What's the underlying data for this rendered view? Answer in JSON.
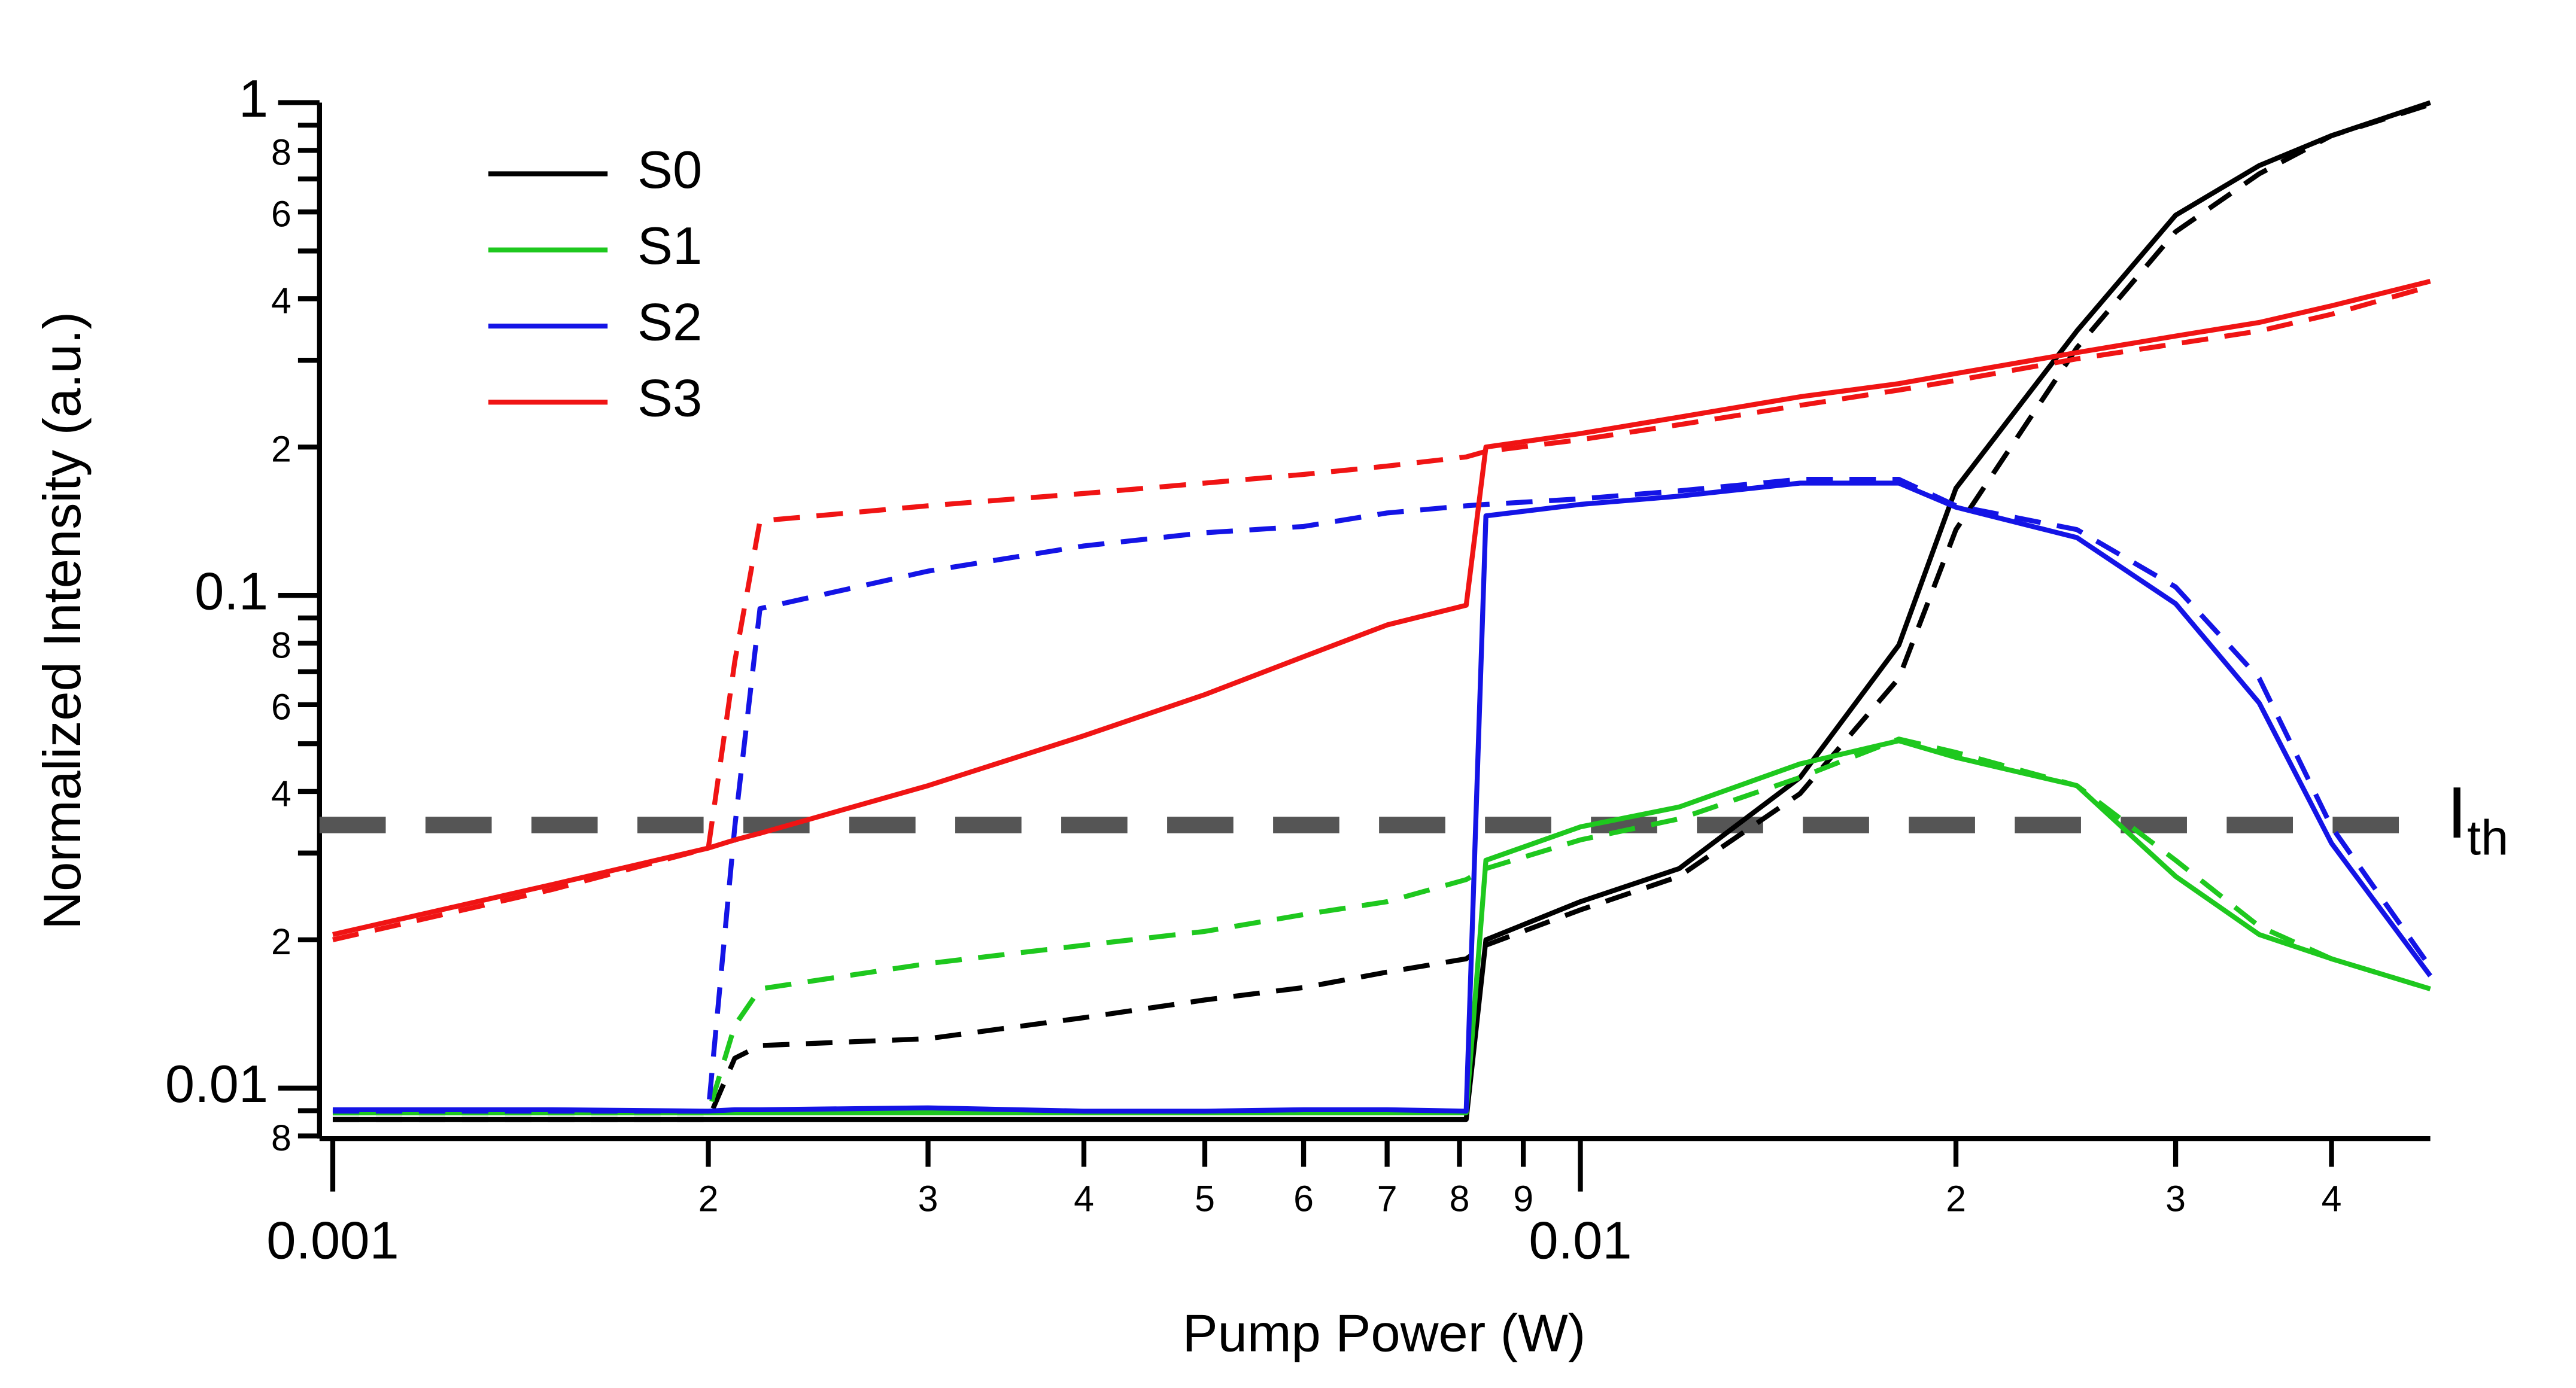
{
  "chart_data": {
    "type": "line",
    "xlabel": "Pump Power (W)",
    "ylabel": "Normalized Intensity (a.u.)",
    "xscale": "log",
    "yscale": "log",
    "xlim": [
      0.001,
      0.048
    ],
    "ylim": [
      0.0079,
      1
    ],
    "xticks": [
      0.001,
      {
        "value": 0.002,
        "label": "2"
      },
      {
        "value": 0.003,
        "label": "3"
      },
      {
        "value": 0.004,
        "label": "4"
      },
      {
        "value": 0.005,
        "label": "5"
      },
      {
        "value": 0.006,
        "label": "6"
      },
      {
        "value": 0.007,
        "label": "7"
      },
      {
        "value": 0.008,
        "label": "8"
      },
      {
        "value": 0.009,
        "label": "9"
      },
      0.01,
      {
        "value": 0.02,
        "label": "2"
      },
      {
        "value": 0.03,
        "label": "3"
      },
      {
        "value": 0.04,
        "label": "4"
      }
    ],
    "yticks": [
      1,
      {
        "value": 0.8,
        "label": "8"
      },
      {
        "value": 0.6,
        "label": "6"
      },
      {
        "value": 0.4,
        "label": "4"
      },
      {
        "value": 0.2,
        "label": "2"
      },
      0.1,
      {
        "value": 0.08,
        "label": "8"
      },
      {
        "value": 0.06,
        "label": "6"
      },
      {
        "value": 0.04,
        "label": "4"
      },
      {
        "value": 0.02,
        "label": "2"
      },
      0.01,
      {
        "value": 0.008,
        "label": "8"
      }
    ],
    "legend": "upper left",
    "threshold": {
      "label": "I",
      "subscript": "th",
      "value": 0.0342,
      "color": "#555555"
    },
    "x": [
      0.001,
      0.0015,
      0.002,
      0.0021,
      0.0022,
      0.003,
      0.004,
      0.005,
      0.006,
      0.007,
      0.0081,
      0.0084,
      0.01,
      0.012,
      0.015,
      0.018,
      0.02,
      0.025,
      0.03,
      0.035,
      0.04,
      0.048
    ],
    "series": [
      {
        "name": "S0",
        "color": "#000000",
        "values": [
          0.00864,
          0.00864,
          0.00864,
          0.00864,
          0.00864,
          0.00864,
          0.00864,
          0.00864,
          0.00864,
          0.00864,
          0.00864,
          0.02,
          0.0239,
          0.0279,
          0.0427,
          0.0793,
          0.165,
          0.344,
          0.591,
          0.745,
          0.857,
          1.0
        ],
        "values_dashed": [
          0.00864,
          0.00864,
          0.00864,
          0.0115,
          0.0122,
          0.0126,
          0.0139,
          0.0151,
          0.016,
          0.0172,
          0.0183,
          0.0195,
          0.023,
          0.0269,
          0.0396,
          0.0679,
          0.136,
          0.318,
          0.547,
          0.717,
          0.857,
          0.992
        ]
      },
      {
        "name": "S1",
        "color": "#1ec81e",
        "values": [
          0.00891,
          0.00891,
          0.00891,
          0.00891,
          0.00891,
          0.00891,
          0.00891,
          0.00891,
          0.00891,
          0.00891,
          0.00891,
          0.029,
          0.0339,
          0.0372,
          0.0455,
          0.0507,
          0.0469,
          0.0411,
          0.0269,
          0.0205,
          0.0183,
          0.0159
        ],
        "values_dashed": [
          0.00891,
          0.00891,
          0.00891,
          0.0134,
          0.0159,
          0.0179,
          0.0195,
          0.0208,
          0.0225,
          0.0239,
          0.0265,
          0.0279,
          0.0319,
          0.0352,
          0.0427,
          0.0511,
          0.048,
          0.0411,
          0.029,
          0.0213,
          0.0183,
          0.0159
        ]
      },
      {
        "name": "S2",
        "color": "#1414e6",
        "values": [
          0.00904,
          0.00904,
          0.00898,
          0.00904,
          0.00904,
          0.00912,
          0.00898,
          0.00898,
          0.00904,
          0.00904,
          0.00898,
          0.145,
          0.153,
          0.159,
          0.169,
          0.169,
          0.151,
          0.131,
          0.0962,
          0.0605,
          0.0314,
          0.0169
        ],
        "values_dashed": [
          0.00898,
          0.00898,
          0.00898,
          0.0339,
          0.094,
          0.112,
          0.126,
          0.134,
          0.138,
          0.147,
          0.152,
          0.153,
          0.157,
          0.163,
          0.172,
          0.172,
          0.152,
          0.136,
          0.104,
          0.0679,
          0.0339,
          0.0176
        ]
      },
      {
        "name": "S3",
        "color": "#f01414",
        "values": [
          0.0205,
          0.0259,
          0.0307,
          0.0319,
          0.0329,
          0.0411,
          0.0519,
          0.0629,
          0.0751,
          0.0871,
          0.0955,
          0.2,
          0.213,
          0.23,
          0.253,
          0.269,
          0.282,
          0.311,
          0.336,
          0.358,
          0.387,
          0.434
        ],
        "values_dashed": [
          0.02,
          0.0253,
          0.0307,
          0.0734,
          0.1416,
          0.152,
          0.161,
          0.169,
          0.176,
          0.183,
          0.191,
          0.196,
          0.207,
          0.222,
          0.243,
          0.261,
          0.273,
          0.302,
          0.324,
          0.344,
          0.372,
          0.424
        ]
      }
    ]
  }
}
